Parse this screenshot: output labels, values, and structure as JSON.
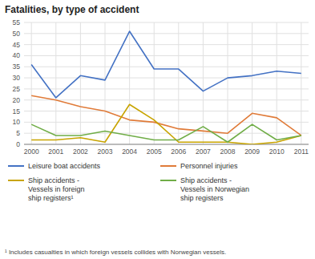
{
  "chart_data": {
    "type": "line",
    "title": "Fatalities, by type of accident",
    "footnote": "¹ Includes casualties in which foreign vessels collides with Norwegian vessels.",
    "x": [
      2000,
      2001,
      2002,
      2003,
      2004,
      2005,
      2006,
      2007,
      2008,
      2009,
      2010,
      2011
    ],
    "series": [
      {
        "name": "Leisure boat accidents",
        "color": "#4472c4",
        "values": [
          36,
          21,
          31,
          29,
          51,
          34,
          34,
          24,
          30,
          31,
          33,
          32
        ]
      },
      {
        "name": "Personnel injuries",
        "color": "#e07b39",
        "values": [
          22,
          20,
          17,
          15,
          11,
          10,
          7,
          6,
          5,
          14,
          12,
          4
        ]
      },
      {
        "name": "Ship accidents -\nVessels in foreign\nship registers¹",
        "color": "#c8a400",
        "values": [
          2,
          2,
          3,
          1,
          18,
          11,
          1,
          1,
          1,
          0,
          1,
          4
        ]
      },
      {
        "name": "Ship accidents -\nVessels in Norwegian\nship registers",
        "color": "#70ad47",
        "values": [
          9,
          4,
          4,
          6,
          4,
          2,
          2,
          8,
          1,
          9,
          2,
          4
        ]
      }
    ],
    "xlim": [
      1999.7,
      2011.3
    ],
    "xticks": [
      2000,
      2001,
      2002,
      2003,
      2004,
      2005,
      2006,
      2007,
      2008,
      2009,
      2010,
      2011
    ],
    "ylim": [
      0,
      55
    ],
    "yticks": [
      0,
      5,
      10,
      15,
      20,
      25,
      30,
      35,
      40,
      45,
      50,
      55
    ],
    "grid": true,
    "legend": "bottom"
  }
}
